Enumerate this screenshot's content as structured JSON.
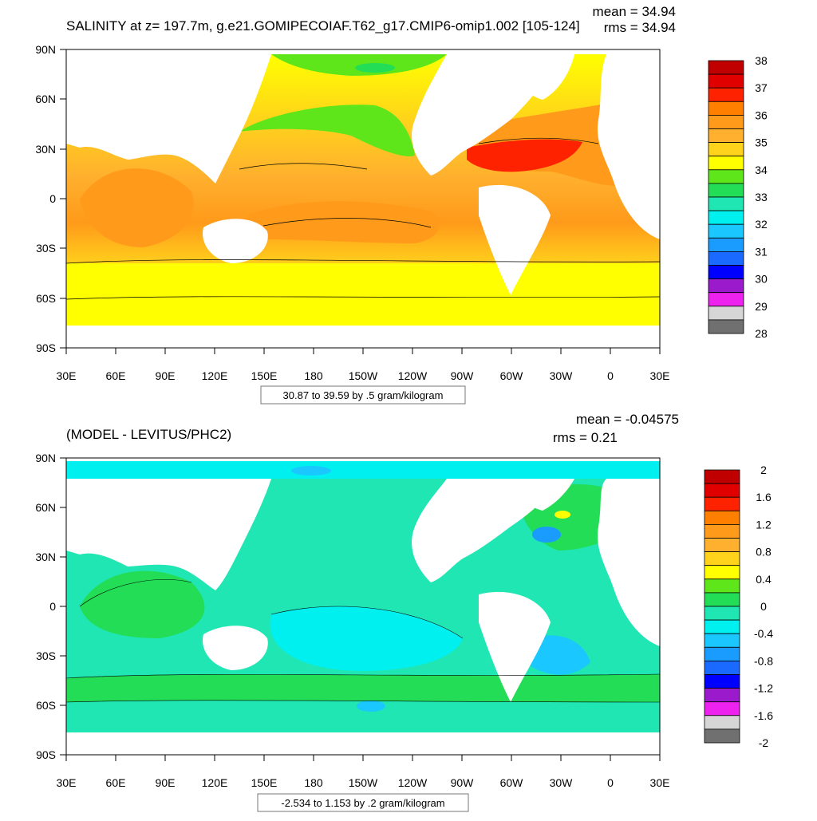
{
  "colors": {
    "ocean_bg": "#ffffff",
    "land": "#ffffff",
    "axis": "#000000"
  },
  "top_panel": {
    "title": "SALINITY at z= 197.7m, g.e21.GOMIPECOIAF.T62_g17.CMIP6-omip1.002 [105-124]",
    "mean_label": "mean = 34.94",
    "rms_label": "rms = 34.94",
    "contour_info": "30.87 to 39.59 by .5 gram/kilogram",
    "y_ticks": [
      "90N",
      "60N",
      "30N",
      "0",
      "30S",
      "60S",
      "90S"
    ],
    "x_ticks": [
      "30E",
      "60E",
      "90E",
      "120E",
      "150E",
      "180",
      "150W",
      "120W",
      "90W",
      "60W",
      "30W",
      "0",
      "30E"
    ],
    "colorbar": {
      "labels": [
        "38",
        "37",
        "36",
        "35",
        "34",
        "33",
        "32",
        "31",
        "30",
        "29",
        "28"
      ],
      "colors": [
        "#c00000",
        "#e00000",
        "#ff2200",
        "#ff7f00",
        "#ff9a1a",
        "#ffb02e",
        "#ffd21c",
        "#ffff00",
        "#5fe61a",
        "#22dd55",
        "#1fe6b2",
        "#00f0f0",
        "#1ac8ff",
        "#1a9cff",
        "#1a6aff",
        "#0000ff",
        "#9a1acc",
        "#ee22ee",
        "#d6d6d6",
        "#707070"
      ]
    }
  },
  "bottom_panel": {
    "title": "(MODEL - LEVITUS/PHC2)",
    "mean_label": "mean = -0.04575",
    "rms_label": "rms = 0.21",
    "contour_info": "-2.534 to 1.153 by .2 gram/kilogram",
    "y_ticks": [
      "90N",
      "60N",
      "30N",
      "0",
      "30S",
      "60S",
      "90S"
    ],
    "x_ticks": [
      "30E",
      "60E",
      "90E",
      "120E",
      "150E",
      "180",
      "150W",
      "120W",
      "90W",
      "60W",
      "30W",
      "0",
      "30E"
    ],
    "colorbar": {
      "labels": [
        "2",
        "1.6",
        "1.2",
        "0.8",
        "0.4",
        "0",
        "-0.4",
        "-0.8",
        "-1.2",
        "-1.6",
        "-2"
      ],
      "colors": [
        "#c00000",
        "#e00000",
        "#ff2200",
        "#ff7f00",
        "#ff9a1a",
        "#ffb02e",
        "#ffd21c",
        "#ffff00",
        "#5fe61a",
        "#22dd55",
        "#1fe6b2",
        "#00f0f0",
        "#1ac8ff",
        "#1a9cff",
        "#1a6aff",
        "#0000ff",
        "#9a1acc",
        "#ee22ee",
        "#d6d6d6",
        "#707070"
      ]
    }
  }
}
